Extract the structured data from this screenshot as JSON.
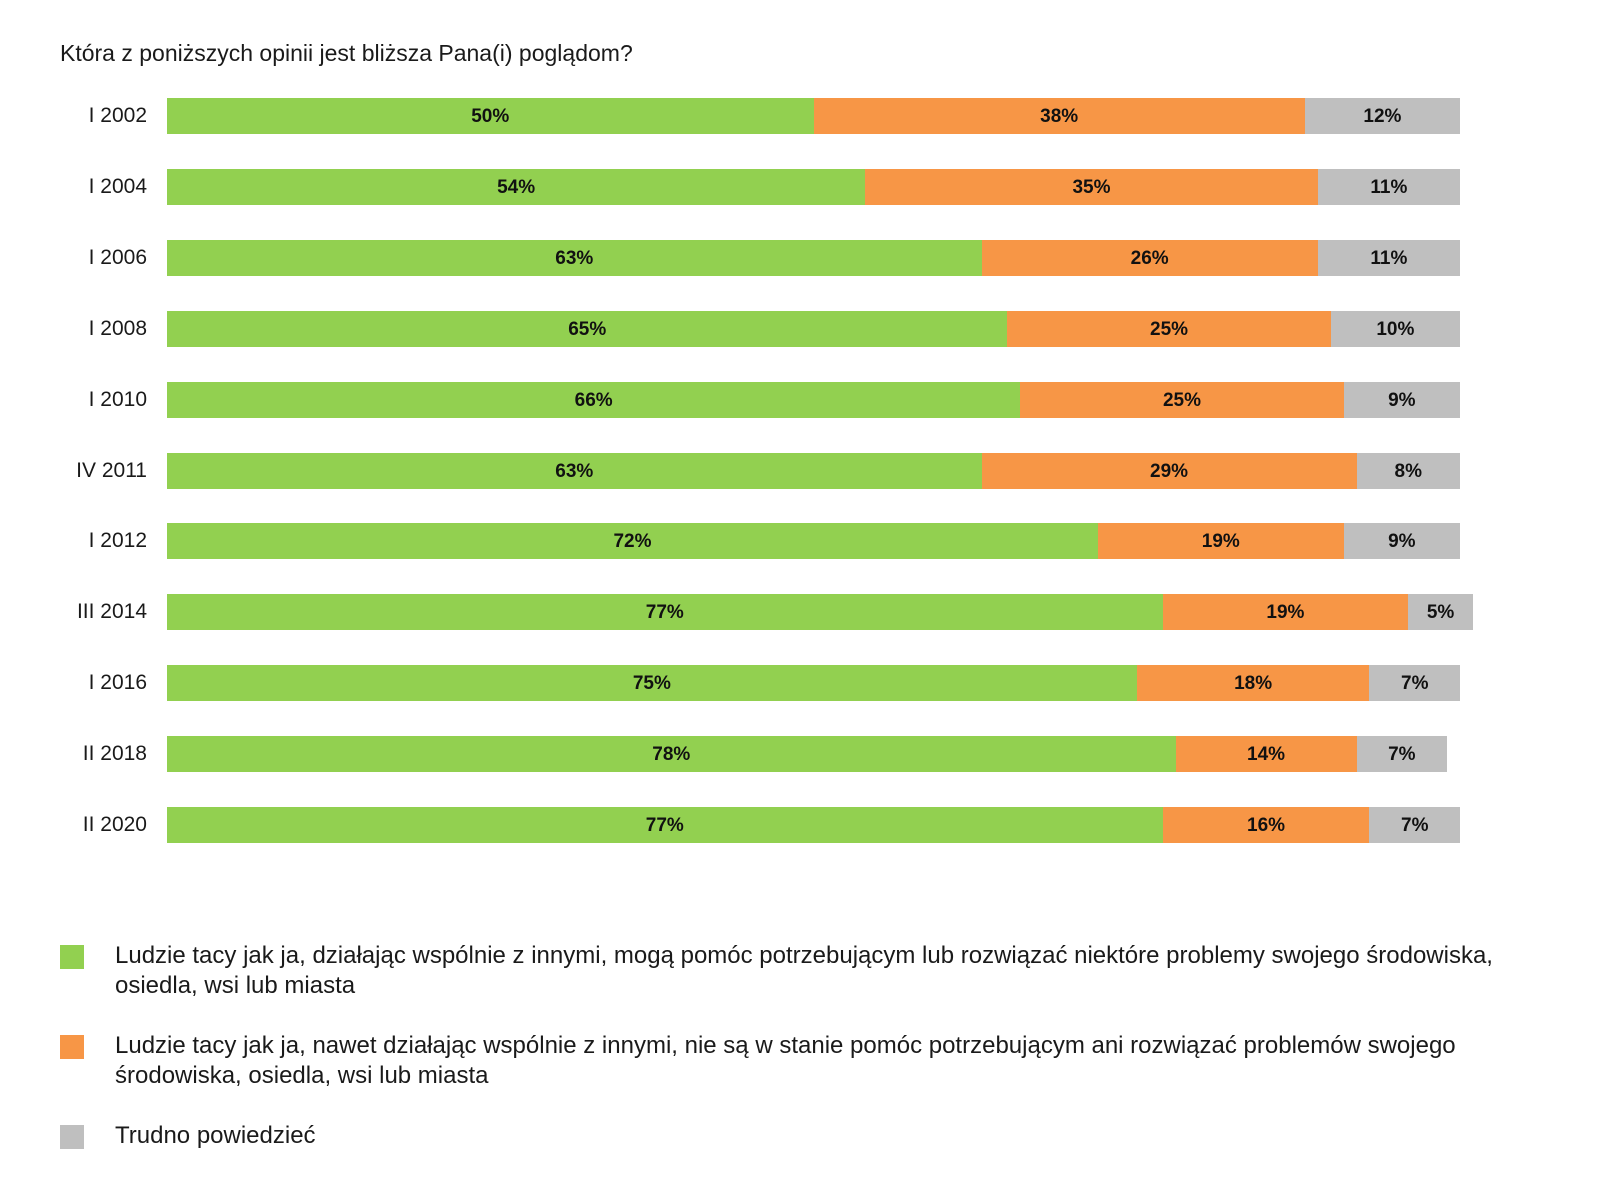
{
  "chart_data": {
    "type": "bar",
    "orientation": "horizontal",
    "stacked": true,
    "title": "Która z poniższych opinii jest bliższa Pana(i) poglądom?",
    "categories": [
      "I 2002",
      "I 2004",
      "I 2006",
      "I 2008",
      "I 2010",
      "IV 2011",
      "I 2012",
      "III 2014",
      "I 2016",
      "II 2018",
      "II 2020"
    ],
    "series": [
      {
        "name": "Ludzie tacy jak ja, działając wspólnie z innymi, mogą pomóc potrzebującym lub rozwiązać niektóre problemy swojego środowiska, osiedla, wsi lub miasta",
        "color": "#92d050",
        "values": [
          50,
          54,
          63,
          65,
          66,
          63,
          72,
          77,
          75,
          78,
          77
        ]
      },
      {
        "name": "Ludzie tacy jak ja, nawet działając wspólnie z innymi, nie są w stanie pomóc potrzebującym ani rozwiązać problemów swojego środowiska, osiedla, wsi lub miasta",
        "color": "#f79646",
        "values": [
          38,
          35,
          26,
          25,
          25,
          29,
          19,
          19,
          18,
          14,
          16
        ]
      },
      {
        "name": "Trudno powiedzieć",
        "color": "#bfbfbf",
        "values": [
          12,
          11,
          11,
          10,
          9,
          8,
          9,
          5,
          7,
          7,
          7
        ]
      }
    ],
    "xlim": [
      0,
      100
    ],
    "value_suffix": "%",
    "data_labels": true,
    "grid": false,
    "legend_position": "bottom"
  }
}
